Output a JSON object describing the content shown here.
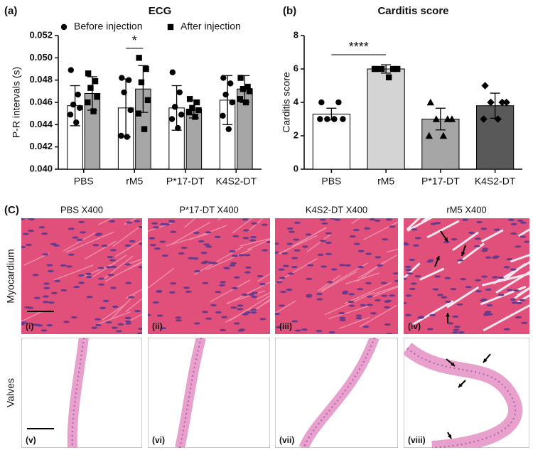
{
  "chart_data": [
    {
      "type": "grouped-bar",
      "label": "(a)",
      "title": "ECG",
      "ylabel": "P-R intervals (s)",
      "categories": [
        "PBS",
        "rM5",
        "P*17-DT",
        "K4S2-DT"
      ],
      "series": [
        {
          "name": "Before injection",
          "color": "#ffffff",
          "marker": "circle",
          "values": [
            0.0457,
            0.0455,
            0.0455,
            0.0462
          ],
          "errors": [
            0.0018,
            0.0026,
            0.002,
            0.0022
          ],
          "points": [
            [
              0.0489,
              0.0467,
              0.0458,
              0.0455,
              0.0449,
              0.0442
            ],
            [
              0.0482,
              0.048,
              0.0469,
              0.0453,
              0.043,
              0.0429
            ],
            [
              0.0487,
              0.0469,
              0.0456,
              0.0449,
              0.0445,
              0.0437
            ],
            [
              0.0482,
              0.0477,
              0.0467,
              0.046,
              0.0448,
              0.0436
            ]
          ]
        },
        {
          "name": "After injection",
          "color": "#a6a6a6",
          "marker": "square",
          "values": [
            0.0468,
            0.0472,
            0.0454,
            0.0472
          ],
          "errors": [
            0.0015,
            0.0021,
            0.0008,
            0.0012
          ],
          "points": [
            [
              0.0486,
              0.0479,
              0.0473,
              0.0465,
              0.046,
              0.0452
            ],
            [
              0.05,
              0.049,
              0.0478,
              0.0462,
              0.045,
              0.0436
            ],
            [
              0.0463,
              0.046,
              0.0455,
              0.0453,
              0.0451,
              0.0447
            ],
            [
              0.0482,
              0.0474,
              0.0472,
              0.047,
              0.0463,
              0.046
            ]
          ]
        }
      ],
      "ylim": [
        0.04,
        0.052
      ],
      "yticks": [
        {
          "value": 0.04,
          "label": "0.040"
        },
        {
          "value": 0.042,
          "label": "0.042"
        },
        {
          "value": 0.044,
          "label": "0.044"
        },
        {
          "value": 0.046,
          "label": "0.046"
        },
        {
          "value": 0.048,
          "label": "0.048"
        },
        {
          "value": 0.05,
          "label": "0.050"
        },
        {
          "value": 0.052,
          "label": "0.052"
        }
      ],
      "annotation": "*"
    },
    {
      "type": "bar",
      "label": "(b)",
      "title": "Carditis score",
      "ylabel": "Carditis score",
      "categories": [
        "PBS",
        "rM5",
        "P*17-DT",
        "K4S2-DT"
      ],
      "values": [
        3.3,
        6.0,
        3.0,
        3.8
      ],
      "errors": [
        0.35,
        0.25,
        0.65,
        0.75
      ],
      "colors": [
        "#ffffff",
        "#d4d4d4",
        "#a6a6a6",
        "#595959"
      ],
      "markers": [
        "circle",
        "square",
        "triangle",
        "diamond"
      ],
      "points": [
        [
          4,
          4,
          3,
          3,
          3,
          3
        ],
        [
          6,
          6,
          6,
          6,
          6,
          5.5
        ],
        [
          4,
          3,
          3,
          3,
          2,
          2
        ],
        [
          5,
          4,
          4,
          4,
          3,
          3
        ]
      ],
      "ylim": [
        0,
        8
      ],
      "yticks": [
        0,
        2,
        4,
        6,
        8
      ],
      "annotation": "****"
    }
  ],
  "panel_c": {
    "label": "(C)",
    "columns": [
      "PBS X400",
      "P*17-DT X400",
      "K4S2-DT X400",
      "rM5 X400"
    ],
    "rows": [
      "Myocardium",
      "Valves"
    ],
    "images": [
      [
        "(i)",
        "(ii)",
        "(iii)",
        "(iv)"
      ],
      [
        "(v)",
        "(vi)",
        "(vii)",
        "(viii)"
      ]
    ]
  }
}
